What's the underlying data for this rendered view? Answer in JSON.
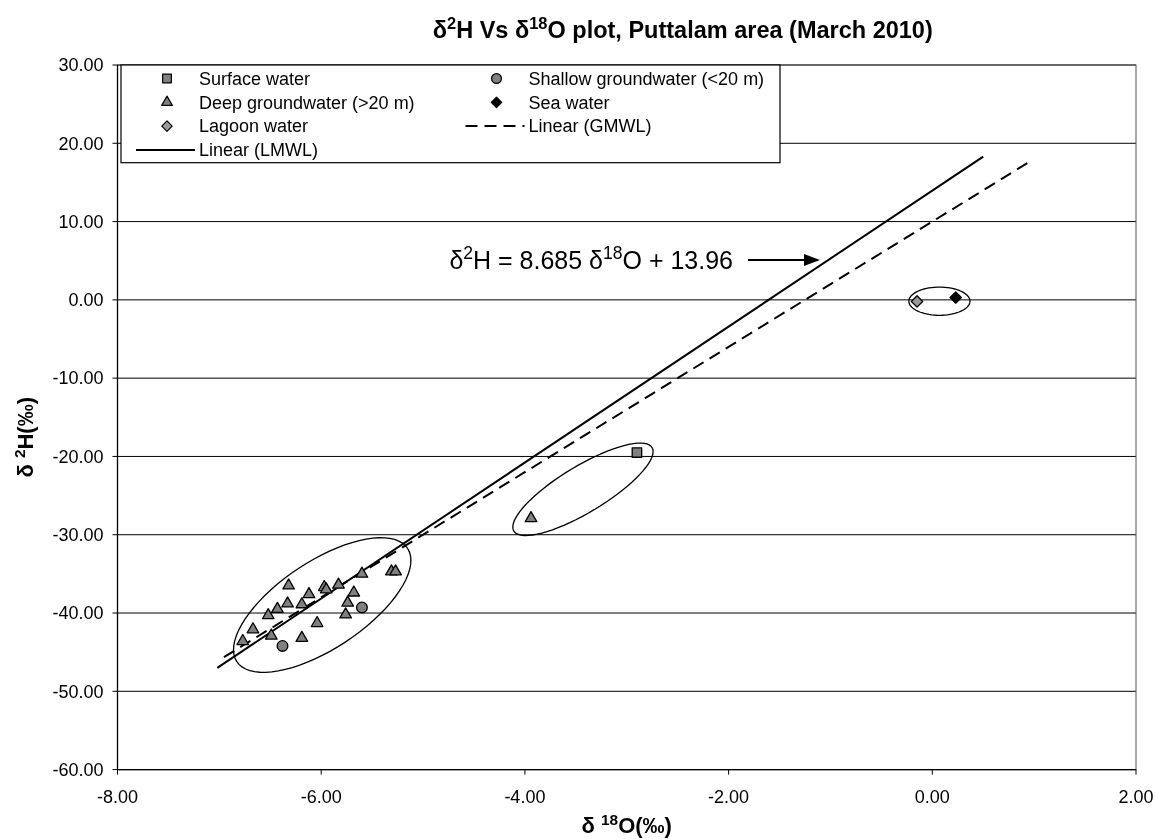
{
  "chart_data": {
    "type": "scatter",
    "title": "δ$^{2}$H Vs δ$^{18}$O plot, Puttalam area (March 2010)",
    "xlabel": "δ $^{18}$O(‰)",
    "ylabel": "δ $^{2}$H(‰)",
    "xlim": [
      -8,
      2
    ],
    "ylim": [
      -60,
      30
    ],
    "xticks": [
      {
        "value": -8,
        "label": "-8.00"
      },
      {
        "value": -6,
        "label": "-6.00"
      },
      {
        "value": -4,
        "label": "-4.00"
      },
      {
        "value": -2,
        "label": "-2.00"
      },
      {
        "value": 0,
        "label": "0.00"
      },
      {
        "value": 2,
        "label": "2.00"
      }
    ],
    "yticks": [
      {
        "value": -60,
        "label": "-60.00"
      },
      {
        "value": -50,
        "label": "-50.00"
      },
      {
        "value": -40,
        "label": "-40.00"
      },
      {
        "value": -30,
        "label": "-30.00"
      },
      {
        "value": -20,
        "label": "-20.00"
      },
      {
        "value": -10,
        "label": "-10.00"
      },
      {
        "value": 0,
        "label": "0.00"
      },
      {
        "value": 10,
        "label": "10.00"
      },
      {
        "value": 20,
        "label": "20.00"
      },
      {
        "value": 30,
        "label": "30.00"
      }
    ],
    "grid": "y",
    "legend": "top left",
    "annotations": [
      "δ$^{2}$H = 8.685 δ$^{18}$O + 13.96"
    ],
    "series": [
      {
        "name": "Surface water",
        "type": "scatter",
        "marker": "square",
        "color": "#808080",
        "x": [
          -2.9
        ],
        "values": [
          -19.5
        ]
      },
      {
        "name": "Shallow groundwater (<20 m)",
        "type": "scatter",
        "marker": "circle",
        "color": "#808080",
        "x": [
          -6.38,
          -5.6
        ],
        "values": [
          -44.2,
          -39.3
        ]
      },
      {
        "name": "Deep groundwater (>20 m)",
        "type": "scatter",
        "marker": "triangle",
        "color": "#808080",
        "x": [
          -6.77,
          -6.67,
          -6.49,
          -6.52,
          -6.43,
          -6.33,
          -6.32,
          -6.19,
          -6.19,
          -6.12,
          -6.04,
          -5.97,
          -5.95,
          -5.83,
          -5.68,
          -5.74,
          -5.76,
          -5.6,
          -5.31,
          -5.27,
          -3.94
        ],
        "values": [
          -43.6,
          -42.1,
          -42.9,
          -40.3,
          -39.5,
          -38.8,
          -36.5,
          -43.2,
          -38.9,
          -37.6,
          -41.3,
          -36.7,
          -37.0,
          -36.4,
          -37.4,
          -38.7,
          -40.2,
          -35.0,
          -34.7,
          -34.7,
          -27.9
        ]
      },
      {
        "name": "Sea water",
        "type": "scatter",
        "marker": "diamond",
        "color": "#000000",
        "x": [
          0.23
        ],
        "values": [
          0.3
        ]
      },
      {
        "name": "Lagoon water",
        "type": "scatter",
        "marker": "diamond",
        "color": "#999999",
        "x": [
          -0.15
        ],
        "values": [
          -0.2
        ]
      },
      {
        "name": "Linear (GMWL)",
        "type": "line",
        "marker": "none",
        "line_style": "dashed",
        "color": "#000000",
        "x": [
          -7,
          0.95
        ],
        "values": [
          -46,
          17.6
        ]
      },
      {
        "name": "Linear (LMWL)",
        "type": "line",
        "marker": "none",
        "line_style": "solid",
        "color": "#000000",
        "x": [
          -7.02,
          0.5
        ],
        "values": [
          -47.0,
          18.3
        ]
      }
    ]
  }
}
